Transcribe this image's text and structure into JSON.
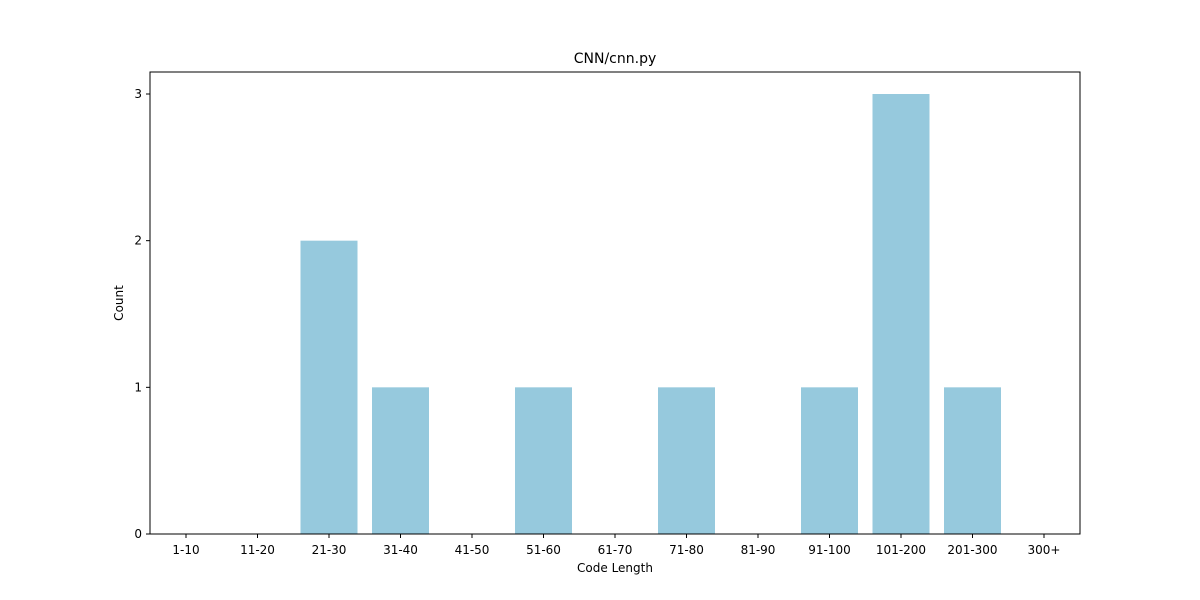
{
  "chart_data": {
    "type": "bar",
    "title": "CNN/cnn.py",
    "xlabel": "Code Length",
    "ylabel": "Count",
    "categories": [
      "1-10",
      "11-20",
      "21-30",
      "31-40",
      "41-50",
      "51-60",
      "61-70",
      "71-80",
      "81-90",
      "91-100",
      "101-200",
      "201-300",
      "300+"
    ],
    "values": [
      0,
      0,
      2,
      1,
      0,
      1,
      0,
      1,
      0,
      1,
      3,
      1,
      0
    ],
    "yticks": [
      0,
      1,
      2,
      3
    ],
    "ylim": [
      0,
      3.15
    ],
    "bar_color": "#96c9dd",
    "grid": false,
    "legend": "none"
  }
}
